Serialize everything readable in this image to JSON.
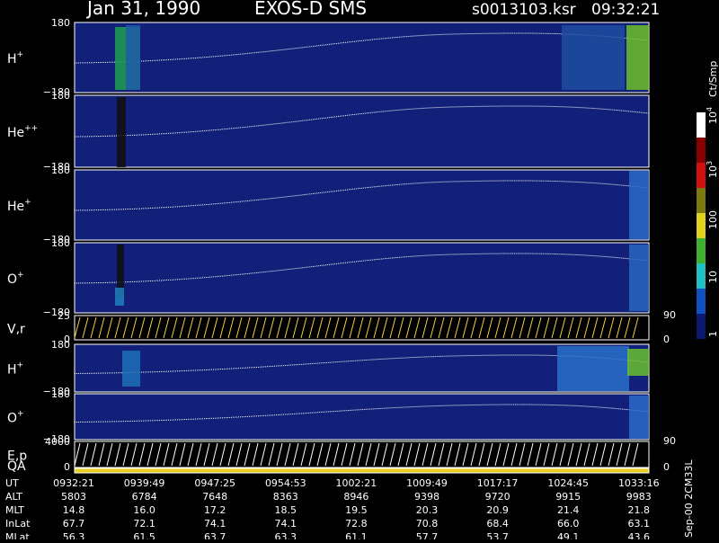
{
  "header": {
    "date": "Jan 31, 1990",
    "instrument": "EXOS-D SMS",
    "file": "s0013103.ksr",
    "time": "09:32:21"
  },
  "panels": [
    {
      "label": "H",
      "sup": "+",
      "ticks": [
        "180",
        "−180"
      ]
    },
    {
      "label": "He",
      "sup": "++",
      "ticks": [
        "180",
        "−180"
      ]
    },
    {
      "label": "He",
      "sup": "+",
      "ticks": [
        "180",
        "−180"
      ]
    },
    {
      "label": "O",
      "sup": "+",
      "ticks": [
        "180",
        "−180"
      ]
    },
    {
      "label": "V,r",
      "ticks": [
        "25",
        "0"
      ],
      "right_ticks": [
        "90",
        "0"
      ]
    },
    {
      "label": "H",
      "sup": "+",
      "ticks": [
        "180",
        "−180"
      ]
    },
    {
      "label": "O",
      "sup": "+",
      "ticks": [
        "180",
        "−180"
      ]
    },
    {
      "label": "E,p",
      "ticks": [
        "4000",
        "0"
      ],
      "right_ticks": [
        "90",
        "0"
      ]
    },
    {
      "label": "QA"
    }
  ],
  "colorbar": {
    "unit": "Ct/Smp",
    "labels": [
      {
        "base": "10",
        "exp": "4"
      },
      {
        "base": "10",
        "exp": "3"
      },
      {
        "base": "100"
      },
      {
        "base": "10"
      },
      {
        "base": "1"
      }
    ]
  },
  "table": {
    "rows": [
      [
        "UT",
        "0932:21",
        "0939:49",
        "0947:25",
        "0954:53",
        "1002:21",
        "1009:49",
        "1017:17",
        "1024:45",
        "1033:16"
      ],
      [
        "ALT",
        "5803",
        "6784",
        "7648",
        "8363",
        "8946",
        "9398",
        "9720",
        "9915",
        "9983"
      ],
      [
        "MLT",
        "14.8",
        "16.0",
        "17.2",
        "18.5",
        "19.5",
        "20.3",
        "20.9",
        "21.4",
        "21.8"
      ],
      [
        "InLat",
        "67.7",
        "72.1",
        "74.1",
        "74.1",
        "72.8",
        "70.8",
        "68.4",
        "66.0",
        "63.1"
      ],
      [
        "MLat",
        "56.3",
        "61.5",
        "63.7",
        "63.3",
        "61.1",
        "57.7",
        "53.7",
        "49.1",
        "43.6"
      ]
    ]
  },
  "footer": "Sep-00 2CM33L"
}
